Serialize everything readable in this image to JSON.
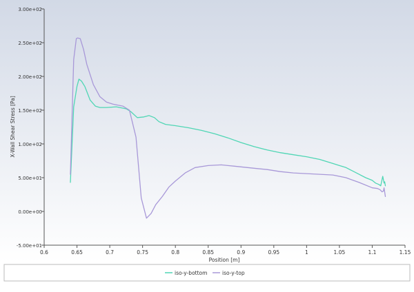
{
  "chart_data": {
    "type": "line",
    "title": "",
    "xlabel": "Position [m]",
    "ylabel": "X-Wall Shear Stress [Pa]",
    "xlim": [
      0.6,
      1.15
    ],
    "ylim": [
      -50,
      300
    ],
    "x_ticks": [
      0.6,
      0.65,
      0.7,
      0.75,
      0.8,
      0.85,
      0.9,
      0.95,
      1,
      1.05,
      1.1,
      1.15
    ],
    "x_tick_labels": [
      "0.6",
      "0.65",
      "0.7",
      "0.75",
      "0.8",
      "0.85",
      "0.9",
      "0.95",
      "1",
      "1.05",
      "1.1",
      "1.15"
    ],
    "y_ticks": [
      -50,
      0,
      50,
      100,
      150,
      200,
      250,
      300
    ],
    "y_tick_labels": [
      "-5.00e+01",
      "0.00e+00",
      "5.00e+01",
      "1.00e+02",
      "1.50e+02",
      "2.00e+02",
      "2.50e+02",
      "3.00e+02"
    ],
    "legend_position": "bottom",
    "colors": {
      "background_top": "#d2d9e6",
      "background_bottom": "#ffffff",
      "iso_y_bottom": "#4fd6b4",
      "iso_y_top": "#a898d8"
    },
    "series": [
      {
        "name": "iso-y-bottom",
        "color": "#4fd6b4",
        "x": [
          0.64,
          0.645,
          0.65,
          0.653,
          0.657,
          0.662,
          0.67,
          0.678,
          0.685,
          0.695,
          0.71,
          0.725,
          0.732,
          0.742,
          0.752,
          0.76,
          0.768,
          0.775,
          0.785,
          0.8,
          0.82,
          0.84,
          0.86,
          0.88,
          0.9,
          0.92,
          0.94,
          0.96,
          0.98,
          1.0,
          1.02,
          1.04,
          1.05,
          1.06,
          1.08,
          1.09,
          1.1,
          1.105,
          1.11,
          1.113,
          1.116,
          1.118,
          1.119,
          1.12
        ],
        "y": [
          43,
          155,
          185,
          196,
          193,
          185,
          165,
          156,
          154,
          154,
          155,
          152,
          148,
          139,
          140,
          142,
          139,
          133,
          129,
          127,
          124,
          120,
          115,
          109,
          102,
          96,
          91,
          87,
          84,
          81,
          77,
          71,
          68,
          65,
          55,
          50,
          46,
          42,
          40,
          38,
          52,
          42,
          44,
          38
        ]
      },
      {
        "name": "iso-y-top",
        "color": "#a898d8",
        "x": [
          0.64,
          0.645,
          0.649,
          0.651,
          0.655,
          0.66,
          0.665,
          0.675,
          0.685,
          0.695,
          0.705,
          0.72,
          0.73,
          0.74,
          0.748,
          0.756,
          0.763,
          0.77,
          0.78,
          0.79,
          0.8,
          0.815,
          0.83,
          0.85,
          0.87,
          0.88,
          0.89,
          0.9,
          0.92,
          0.94,
          0.96,
          0.98,
          1.0,
          1.02,
          1.04,
          1.06,
          1.08,
          1.1,
          1.108,
          1.112,
          1.115,
          1.117,
          1.118,
          1.12
        ],
        "y": [
          55,
          225,
          256,
          257,
          256,
          240,
          218,
          188,
          170,
          162,
          159,
          156,
          150,
          110,
          20,
          -10,
          -3,
          10,
          22,
          36,
          45,
          57,
          65,
          68,
          69,
          68,
          67,
          66,
          64,
          62,
          59,
          57,
          56,
          55,
          54,
          50,
          43,
          35,
          34,
          32,
          29,
          30,
          35,
          22
        ]
      }
    ]
  }
}
